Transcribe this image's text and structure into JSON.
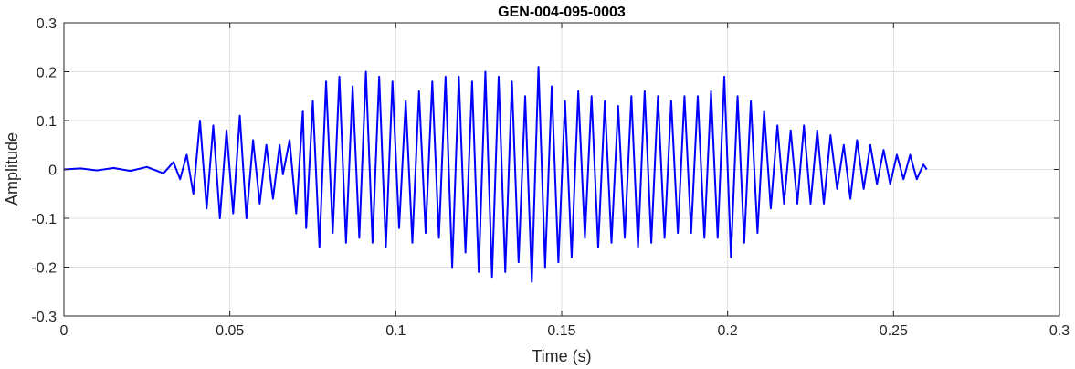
{
  "chart_data": {
    "type": "line",
    "title": "GEN-004-095-0003",
    "xlabel": "Time (s)",
    "ylabel": "Amplitude",
    "xlim": [
      0,
      0.3
    ],
    "ylim": [
      -0.3,
      0.3
    ],
    "xticks": [
      0,
      0.05,
      0.1,
      0.15,
      0.2,
      0.25,
      0.3
    ],
    "xtick_labels": [
      "0",
      "0.05",
      "0.1",
      "0.15",
      "0.2",
      "0.25",
      "0.3"
    ],
    "yticks": [
      -0.3,
      -0.2,
      -0.1,
      0,
      0.1,
      0.2,
      0.3
    ],
    "ytick_labels": [
      "-0.3",
      "-0.2",
      "-0.1",
      "0",
      "0.1",
      "0.2",
      "0.3"
    ],
    "grid": true,
    "legend": "none",
    "series": [
      {
        "color": "#0000ff",
        "x": [
          0,
          0.005,
          0.01,
          0.015,
          0.02,
          0.025,
          0.03,
          0.033,
          0.035,
          0.037,
          0.039,
          0.041,
          0.043,
          0.045,
          0.047,
          0.049,
          0.051,
          0.053,
          0.055,
          0.057,
          0.059,
          0.061,
          0.063,
          0.065,
          0.066,
          0.068,
          0.07,
          0.072,
          0.073,
          0.075,
          0.077,
          0.079,
          0.081,
          0.083,
          0.085,
          0.087,
          0.089,
          0.091,
          0.093,
          0.095,
          0.097,
          0.099,
          0.101,
          0.103,
          0.105,
          0.107,
          0.109,
          0.111,
          0.113,
          0.115,
          0.117,
          0.119,
          0.121,
          0.123,
          0.125,
          0.127,
          0.129,
          0.131,
          0.133,
          0.135,
          0.137,
          0.139,
          0.141,
          0.143,
          0.145,
          0.147,
          0.149,
          0.151,
          0.153,
          0.155,
          0.157,
          0.159,
          0.161,
          0.163,
          0.165,
          0.167,
          0.169,
          0.171,
          0.173,
          0.175,
          0.177,
          0.179,
          0.181,
          0.183,
          0.185,
          0.187,
          0.189,
          0.191,
          0.193,
          0.195,
          0.197,
          0.199,
          0.201,
          0.203,
          0.205,
          0.207,
          0.209,
          0.211,
          0.213,
          0.215,
          0.217,
          0.219,
          0.221,
          0.223,
          0.225,
          0.227,
          0.229,
          0.231,
          0.233,
          0.235,
          0.237,
          0.239,
          0.241,
          0.243,
          0.245,
          0.247,
          0.249,
          0.251,
          0.253,
          0.255,
          0.257,
          0.259,
          0.26
        ],
        "y": [
          0,
          0.002,
          -0.002,
          0.003,
          -0.003,
          0.005,
          -0.008,
          0.015,
          -0.02,
          0.03,
          -0.05,
          0.1,
          -0.08,
          0.09,
          -0.1,
          0.08,
          -0.09,
          0.11,
          -0.1,
          0.06,
          -0.07,
          0.05,
          -0.06,
          0.05,
          -0.01,
          0.06,
          -0.09,
          0.12,
          -0.12,
          0.14,
          -0.16,
          0.18,
          -0.13,
          0.19,
          -0.15,
          0.17,
          -0.14,
          0.2,
          -0.15,
          0.19,
          -0.16,
          0.18,
          -0.12,
          0.14,
          -0.15,
          0.16,
          -0.13,
          0.18,
          -0.14,
          0.19,
          -0.2,
          0.19,
          -0.17,
          0.18,
          -0.21,
          0.2,
          -0.22,
          0.19,
          -0.21,
          0.18,
          -0.19,
          0.15,
          -0.23,
          0.21,
          -0.2,
          0.17,
          -0.19,
          0.14,
          -0.18,
          0.16,
          -0.14,
          0.15,
          -0.16,
          0.14,
          -0.15,
          0.13,
          -0.14,
          0.15,
          -0.16,
          0.16,
          -0.15,
          0.15,
          -0.14,
          0.14,
          -0.13,
          0.15,
          -0.13,
          0.15,
          -0.14,
          0.16,
          -0.14,
          0.19,
          -0.18,
          0.15,
          -0.15,
          0.14,
          -0.13,
          0.12,
          -0.08,
          0.09,
          -0.07,
          0.08,
          -0.07,
          0.09,
          -0.07,
          0.08,
          -0.07,
          0.07,
          -0.04,
          0.05,
          -0.06,
          0.06,
          -0.04,
          0.05,
          -0.03,
          0.04,
          -0.03,
          0.03,
          -0.02,
          0.03,
          -0.02,
          0.01,
          0
        ]
      }
    ]
  }
}
